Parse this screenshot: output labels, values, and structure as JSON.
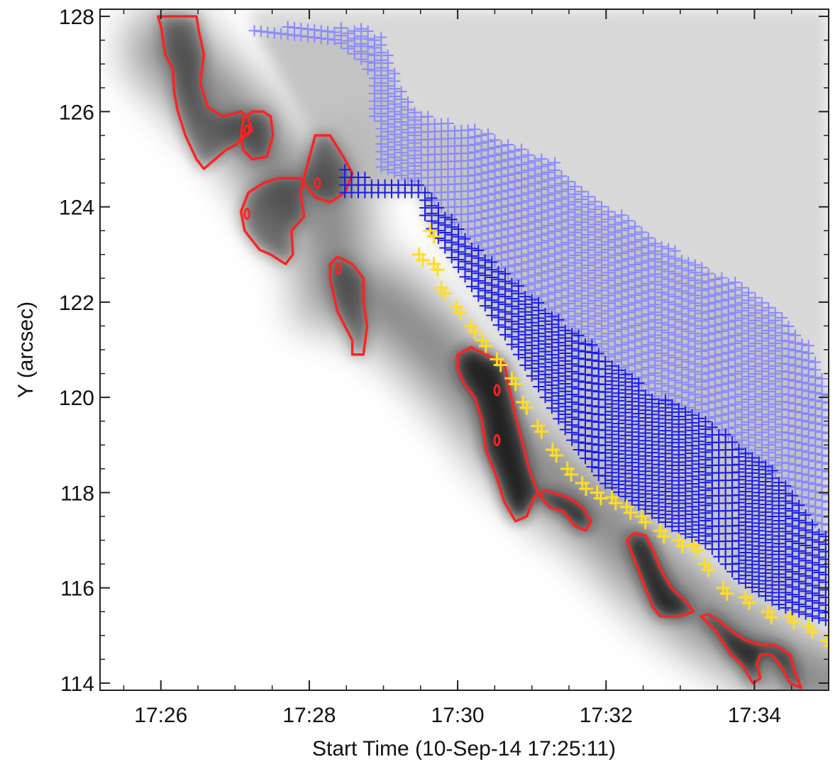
{
  "chart_data": {
    "type": "heatmap",
    "title": "",
    "xlabel": "Start Time (10-Sep-14 17:25:11)",
    "ylabel": "Y (arcsec)",
    "x_unit": "minutes after 17:25:11",
    "xlim": [
      0,
      9.82
    ],
    "ylim": [
      113.85,
      128.15
    ],
    "x_ticks": [
      {
        "label": "17:26",
        "value": 0.82
      },
      {
        "label": "17:28",
        "value": 2.82
      },
      {
        "label": "17:30",
        "value": 4.82
      },
      {
        "label": "17:32",
        "value": 6.82
      },
      {
        "label": "17:34",
        "value": 8.82
      }
    ],
    "y_ticks": [
      128,
      126,
      124,
      122,
      120,
      118,
      116,
      114
    ],
    "colormap": "inverted grayscale",
    "intensity_ridge": [
      {
        "x": 0.9,
        "y": 127.3
      },
      {
        "x": 1.4,
        "y": 126.5
      },
      {
        "x": 2.0,
        "y": 125.6
      },
      {
        "x": 2.6,
        "y": 124.2
      },
      {
        "x": 3.05,
        "y": 124.5
      },
      {
        "x": 3.2,
        "y": 122.3
      },
      {
        "x": 3.8,
        "y": 122.0
      },
      {
        "x": 4.4,
        "y": 121.2
      },
      {
        "x": 5.0,
        "y": 120.2
      },
      {
        "x": 5.6,
        "y": 119.0
      },
      {
        "x": 6.2,
        "y": 118.1
      },
      {
        "x": 6.8,
        "y": 117.4
      },
      {
        "x": 7.4,
        "y": 116.4
      },
      {
        "x": 8.0,
        "y": 115.6
      },
      {
        "x": 8.6,
        "y": 115.0
      },
      {
        "x": 9.2,
        "y": 114.4
      },
      {
        "x": 9.8,
        "y": 114.0
      }
    ],
    "series": [
      {
        "color": "#ff2222",
        "kind": "contour",
        "regions": [
          [
            [
              0.78,
              128.0
            ],
            [
              0.82,
              127.8
            ],
            [
              0.88,
              127.2
            ],
            [
              0.98,
              126.9
            ],
            [
              1.0,
              126.4
            ],
            [
              1.05,
              126.0
            ],
            [
              1.15,
              125.5
            ],
            [
              1.3,
              125.0
            ],
            [
              1.4,
              124.8
            ],
            [
              1.55,
              125.0
            ],
            [
              1.7,
              125.2
            ],
            [
              1.83,
              125.3
            ],
            [
              1.95,
              125.5
            ],
            [
              2.05,
              125.6
            ],
            [
              2.0,
              125.85
            ],
            [
              1.9,
              126.0
            ],
            [
              1.65,
              125.9
            ],
            [
              1.45,
              126.1
            ],
            [
              1.35,
              126.6
            ],
            [
              1.4,
              127.2
            ],
            [
              1.33,
              127.7
            ],
            [
              1.3,
              128.0
            ]
          ],
          [
            [
              1.9,
              125.5
            ],
            [
              1.93,
              125.2
            ],
            [
              2.05,
              125.0
            ],
            [
              2.25,
              125.05
            ],
            [
              2.33,
              125.5
            ],
            [
              2.3,
              125.9
            ],
            [
              2.2,
              126.0
            ],
            [
              2.05,
              126.0
            ],
            [
              1.93,
              125.85
            ]
          ],
          [
            [
              1.9,
              123.9
            ],
            [
              1.95,
              123.5
            ],
            [
              2.15,
              123.1
            ],
            [
              2.3,
              123.0
            ],
            [
              2.5,
              122.8
            ],
            [
              2.6,
              123.0
            ],
            [
              2.58,
              123.5
            ],
            [
              2.75,
              123.8
            ],
            [
              2.7,
              124.3
            ],
            [
              2.78,
              124.8
            ],
            [
              2.9,
              125.5
            ],
            [
              3.1,
              125.5
            ],
            [
              3.3,
              125.0
            ],
            [
              3.4,
              124.7
            ],
            [
              3.3,
              124.3
            ],
            [
              3.1,
              124.1
            ],
            [
              2.9,
              124.2
            ],
            [
              2.7,
              124.6
            ],
            [
              2.5,
              124.6
            ],
            [
              2.4,
              124.6
            ],
            [
              2.2,
              124.5
            ],
            [
              2.0,
              124.3
            ]
          ],
          [
            [
              3.1,
              122.5
            ],
            [
              3.2,
              121.8
            ],
            [
              3.3,
              121.5
            ],
            [
              3.4,
              121.2
            ],
            [
              3.4,
              120.9
            ],
            [
              3.55,
              120.9
            ],
            [
              3.6,
              121.5
            ],
            [
              3.55,
              122.0
            ],
            [
              3.55,
              122.5
            ],
            [
              3.4,
              122.8
            ],
            [
              3.2,
              122.95
            ],
            [
              3.1,
              122.8
            ]
          ],
          [
            [
              4.82,
              120.6
            ],
            [
              4.9,
              120.3
            ],
            [
              5.05,
              120.0
            ],
            [
              5.15,
              119.5
            ],
            [
              5.2,
              118.9
            ],
            [
              5.35,
              118.3
            ],
            [
              5.45,
              117.8
            ],
            [
              5.6,
              117.4
            ],
            [
              5.75,
              117.5
            ],
            [
              5.85,
              117.9
            ],
            [
              6.0,
              118.05
            ],
            [
              6.3,
              117.9
            ],
            [
              6.5,
              117.7
            ],
            [
              6.62,
              117.4
            ],
            [
              6.55,
              117.2
            ],
            [
              6.4,
              117.3
            ],
            [
              6.25,
              117.6
            ],
            [
              6.05,
              117.7
            ],
            [
              5.9,
              118.0
            ],
            [
              5.78,
              118.5
            ],
            [
              5.7,
              119.0
            ],
            [
              5.6,
              119.6
            ],
            [
              5.5,
              120.3
            ],
            [
              5.45,
              120.7
            ],
            [
              5.2,
              120.9
            ],
            [
              5.0,
              121.05
            ],
            [
              4.82,
              120.9
            ]
          ],
          [
            [
              7.1,
              117.0
            ],
            [
              7.25,
              116.4
            ],
            [
              7.35,
              116.0
            ],
            [
              7.45,
              115.6
            ],
            [
              7.55,
              115.4
            ],
            [
              7.8,
              115.4
            ],
            [
              8.0,
              115.5
            ],
            [
              7.9,
              115.7
            ],
            [
              7.7,
              116.0
            ],
            [
              7.55,
              116.4
            ],
            [
              7.45,
              116.8
            ],
            [
              7.35,
              117.1
            ],
            [
              7.2,
              117.15
            ]
          ],
          [
            [
              8.1,
              115.4
            ],
            [
              8.3,
              115.1
            ],
            [
              8.5,
              114.6
            ],
            [
              8.65,
              114.4
            ],
            [
              8.8,
              114.0
            ],
            [
              8.9,
              114.1
            ],
            [
              8.85,
              114.4
            ],
            [
              8.9,
              114.6
            ],
            [
              9.05,
              114.6
            ],
            [
              9.2,
              114.3
            ],
            [
              9.3,
              114.0
            ],
            [
              9.45,
              113.9
            ],
            [
              9.35,
              114.3
            ],
            [
              9.3,
              114.6
            ],
            [
              9.1,
              114.8
            ],
            [
              8.9,
              114.8
            ],
            [
              8.7,
              114.9
            ],
            [
              8.5,
              115.1
            ],
            [
              8.35,
              115.3
            ],
            [
              8.2,
              115.45
            ]
          ]
        ],
        "points": [
          {
            "x": 1.98,
            "y": 125.6
          },
          {
            "x": 1.98,
            "y": 123.85
          },
          {
            "x": 2.93,
            "y": 124.5
          },
          {
            "x": 3.21,
            "y": 122.7
          },
          {
            "x": 5.35,
            "y": 120.15
          },
          {
            "x": 5.35,
            "y": 119.1
          }
        ]
      },
      {
        "color": "#8888ff",
        "kind": "plus-markers",
        "x_range": [
          2.08,
          9.82
        ],
        "upper_edge": [
          {
            "x": 2.08,
            "y": 127.7
          },
          {
            "x": 2.6,
            "y": 127.8
          },
          {
            "x": 3.4,
            "y": 127.8
          },
          {
            "x": 3.8,
            "y": 127.6
          },
          {
            "x": 3.95,
            "y": 127.0
          },
          {
            "x": 4.15,
            "y": 126.2
          },
          {
            "x": 4.6,
            "y": 125.8
          },
          {
            "x": 5.2,
            "y": 125.6
          },
          {
            "x": 5.7,
            "y": 125.2
          },
          {
            "x": 6.1,
            "y": 125.0
          },
          {
            "x": 6.4,
            "y": 124.5
          },
          {
            "x": 6.8,
            "y": 124.0
          },
          {
            "x": 7.2,
            "y": 123.7
          },
          {
            "x": 7.6,
            "y": 123.2
          },
          {
            "x": 8.0,
            "y": 122.9
          },
          {
            "x": 8.3,
            "y": 122.6
          },
          {
            "x": 8.6,
            "y": 122.4
          },
          {
            "x": 8.9,
            "y": 122.0
          },
          {
            "x": 9.1,
            "y": 121.9
          },
          {
            "x": 9.3,
            "y": 121.5
          },
          {
            "x": 9.55,
            "y": 121.1
          },
          {
            "x": 9.82,
            "y": 120.1
          }
        ],
        "lower_edge": [
          {
            "x": 2.08,
            "y": 127.7
          },
          {
            "x": 3.2,
            "y": 127.5
          },
          {
            "x": 3.6,
            "y": 127.0
          },
          {
            "x": 3.7,
            "y": 125.9
          },
          {
            "x": 3.7,
            "y": 124.9
          },
          {
            "x": 4.3,
            "y": 124.5
          },
          {
            "x": 5.0,
            "y": 123.3
          },
          {
            "x": 5.7,
            "y": 122.3
          },
          {
            "x": 6.3,
            "y": 121.5
          },
          {
            "x": 6.9,
            "y": 120.8
          },
          {
            "x": 7.5,
            "y": 120.0
          },
          {
            "x": 8.1,
            "y": 119.7
          },
          {
            "x": 8.6,
            "y": 119.0
          },
          {
            "x": 9.2,
            "y": 118.3
          },
          {
            "x": 9.82,
            "y": 117.0
          }
        ]
      },
      {
        "color": "#1a1aee",
        "kind": "plus-markers",
        "x_range": [
          3.3,
          9.82
        ],
        "upper_edge": [
          {
            "x": 3.3,
            "y": 124.8
          },
          {
            "x": 3.8,
            "y": 124.5
          },
          {
            "x": 4.3,
            "y": 124.5
          },
          {
            "x": 5.0,
            "y": 123.3
          },
          {
            "x": 5.7,
            "y": 122.3
          },
          {
            "x": 6.3,
            "y": 121.5
          },
          {
            "x": 6.9,
            "y": 120.8
          },
          {
            "x": 7.5,
            "y": 120.0
          },
          {
            "x": 8.1,
            "y": 119.7
          },
          {
            "x": 8.6,
            "y": 119.0
          },
          {
            "x": 9.2,
            "y": 118.3
          },
          {
            "x": 9.82,
            "y": 117.0
          }
        ],
        "lower_edge": [
          {
            "x": 3.3,
            "y": 124.3
          },
          {
            "x": 4.3,
            "y": 124.3
          },
          {
            "x": 4.4,
            "y": 123.7
          },
          {
            "x": 4.8,
            "y": 122.8
          },
          {
            "x": 5.2,
            "y": 121.9
          },
          {
            "x": 5.6,
            "y": 121.0
          },
          {
            "x": 6.0,
            "y": 120.0
          },
          {
            "x": 6.4,
            "y": 119.0
          },
          {
            "x": 6.8,
            "y": 118.2
          },
          {
            "x": 7.3,
            "y": 117.7
          },
          {
            "x": 7.8,
            "y": 117.2
          },
          {
            "x": 8.2,
            "y": 116.9
          },
          {
            "x": 8.6,
            "y": 116.2
          },
          {
            "x": 9.2,
            "y": 115.6
          },
          {
            "x": 9.82,
            "y": 115.3
          }
        ]
      },
      {
        "color": "#ffdd22",
        "kind": "plus-markers",
        "points": [
          {
            "x": 4.3,
            "y": 123.0
          },
          {
            "x": 4.45,
            "y": 123.5
          },
          {
            "x": 4.5,
            "y": 122.8
          },
          {
            "x": 4.6,
            "y": 122.3
          },
          {
            "x": 4.8,
            "y": 121.9
          },
          {
            "x": 5.0,
            "y": 121.5
          },
          {
            "x": 5.15,
            "y": 121.2
          },
          {
            "x": 5.35,
            "y": 120.8
          },
          {
            "x": 5.55,
            "y": 120.4
          },
          {
            "x": 5.7,
            "y": 119.9
          },
          {
            "x": 5.9,
            "y": 119.4
          },
          {
            "x": 6.1,
            "y": 118.9
          },
          {
            "x": 6.3,
            "y": 118.5
          },
          {
            "x": 6.5,
            "y": 118.2
          },
          {
            "x": 6.7,
            "y": 118.0
          },
          {
            "x": 6.9,
            "y": 117.9
          },
          {
            "x": 7.1,
            "y": 117.7
          },
          {
            "x": 7.3,
            "y": 117.5
          },
          {
            "x": 7.55,
            "y": 117.2
          },
          {
            "x": 7.8,
            "y": 117.0
          },
          {
            "x": 8.0,
            "y": 116.9
          },
          {
            "x": 8.15,
            "y": 116.5
          },
          {
            "x": 8.4,
            "y": 116.0
          },
          {
            "x": 8.7,
            "y": 115.8
          },
          {
            "x": 9.0,
            "y": 115.5
          },
          {
            "x": 9.3,
            "y": 115.4
          },
          {
            "x": 9.55,
            "y": 115.2
          },
          {
            "x": 9.8,
            "y": 114.9
          }
        ]
      }
    ]
  }
}
